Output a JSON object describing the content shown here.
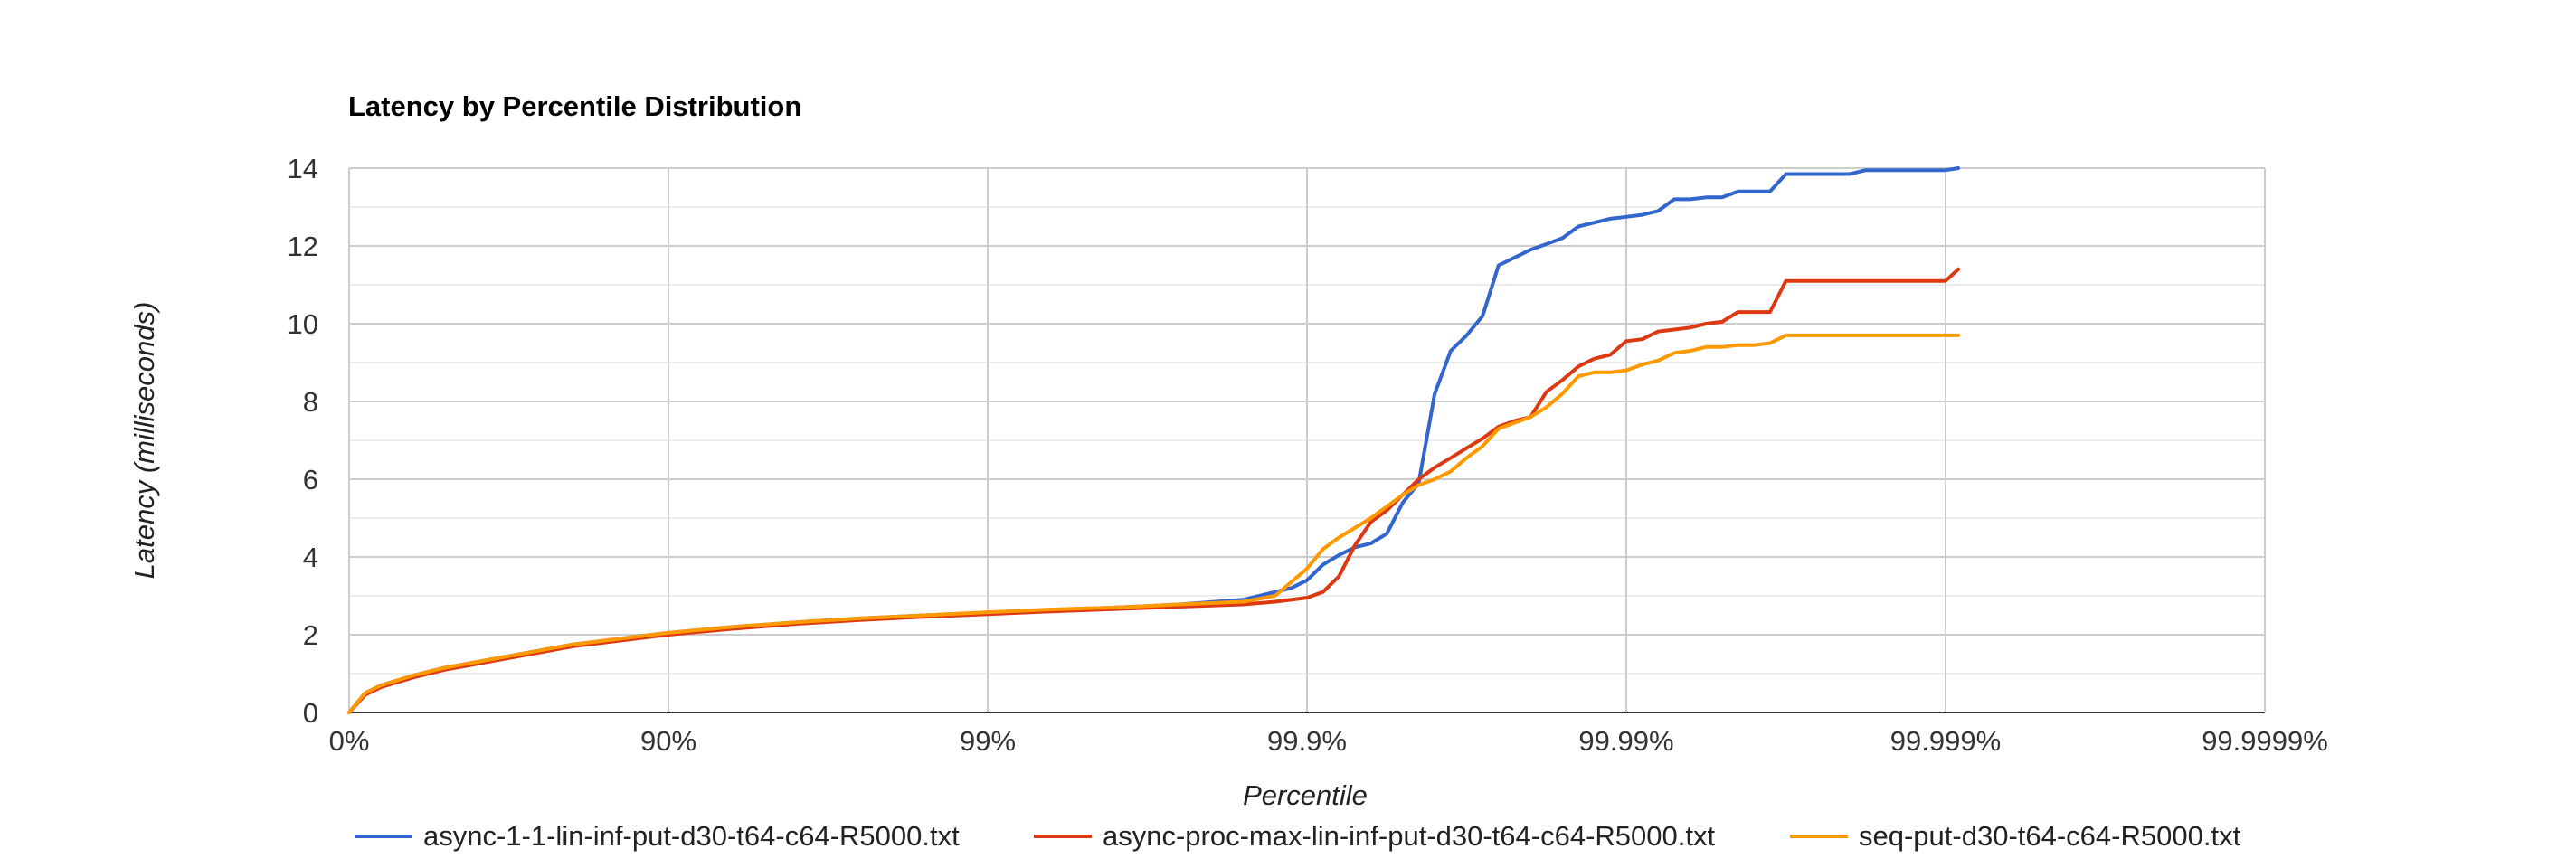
{
  "chart_data": {
    "type": "line",
    "title": "Latency by Percentile Distribution",
    "xlabel": "Percentile",
    "ylabel": "Latency (milliseconds)",
    "x_scale": "nines (log of 1/(1-percentile))",
    "xlim": [
      0,
      6
    ],
    "ylim": [
      0,
      14
    ],
    "x_ticks": [
      "0%",
      "90%",
      "99%",
      "99.9%",
      "99.99%",
      "99.999%",
      "99.9999%"
    ],
    "y_ticks": [
      "0",
      "2",
      "4",
      "6",
      "8",
      "10",
      "12",
      "14"
    ],
    "grid": true,
    "legend_position": "bottom",
    "series": [
      {
        "name": "async-1-1-lin-inf-put-d30-t64-c64-R5000.txt",
        "color": "#3366cc",
        "x": [
          0,
          0.05,
          0.1,
          0.2,
          0.3,
          0.4,
          0.5,
          0.6,
          0.7,
          0.8,
          0.9,
          1.0,
          1.2,
          1.4,
          1.6,
          1.8,
          2.0,
          2.2,
          2.4,
          2.6,
          2.8,
          2.95,
          3.0,
          3.05,
          3.1,
          3.15,
          3.2,
          3.25,
          3.3,
          3.35,
          3.4,
          3.45,
          3.5,
          3.55,
          3.6,
          3.65,
          3.7,
          3.75,
          3.8,
          3.85,
          3.9,
          3.95,
          4.0,
          4.05,
          4.1,
          4.15,
          4.2,
          4.25,
          4.3,
          4.35,
          4.4,
          4.45,
          4.5,
          4.55,
          4.6,
          4.65,
          4.7,
          4.75,
          4.8,
          4.85,
          4.9,
          4.95,
          5.0,
          5.04
        ],
        "values": [
          0.0,
          0.5,
          0.7,
          0.95,
          1.15,
          1.3,
          1.45,
          1.6,
          1.75,
          1.85,
          1.95,
          2.05,
          2.2,
          2.32,
          2.42,
          2.5,
          2.57,
          2.63,
          2.7,
          2.78,
          2.9,
          3.2,
          3.4,
          3.8,
          4.05,
          4.25,
          4.35,
          4.6,
          5.4,
          5.9,
          8.2,
          9.3,
          9.7,
          10.2,
          11.5,
          11.7,
          11.9,
          12.05,
          12.2,
          12.5,
          12.6,
          12.7,
          12.75,
          12.8,
          12.9,
          13.2,
          13.2,
          13.25,
          13.25,
          13.4,
          13.4,
          13.4,
          13.85,
          13.85,
          13.85,
          13.85,
          13.85,
          13.95,
          13.95,
          13.95,
          13.95,
          13.95,
          13.95,
          14.0
        ]
      },
      {
        "name": "async-proc-max-lin-inf-put-d30-t64-c64-R5000.txt",
        "color": "#dc3912",
        "x": [
          0,
          0.05,
          0.1,
          0.2,
          0.3,
          0.4,
          0.5,
          0.6,
          0.7,
          0.8,
          0.9,
          1.0,
          1.2,
          1.4,
          1.6,
          1.8,
          2.0,
          2.2,
          2.4,
          2.6,
          2.8,
          2.9,
          3.0,
          3.05,
          3.1,
          3.15,
          3.2,
          3.25,
          3.3,
          3.35,
          3.4,
          3.45,
          3.5,
          3.55,
          3.6,
          3.65,
          3.7,
          3.75,
          3.8,
          3.85,
          3.9,
          3.95,
          4.0,
          4.05,
          4.1,
          4.15,
          4.2,
          4.25,
          4.3,
          4.35,
          4.4,
          4.45,
          4.5,
          4.55,
          4.6,
          4.65,
          4.7,
          4.75,
          4.8,
          4.85,
          4.9,
          4.95,
          5.0,
          5.04
        ],
        "values": [
          0.0,
          0.45,
          0.65,
          0.9,
          1.1,
          1.25,
          1.4,
          1.55,
          1.7,
          1.8,
          1.9,
          2.0,
          2.15,
          2.28,
          2.38,
          2.46,
          2.53,
          2.6,
          2.66,
          2.72,
          2.78,
          2.85,
          2.95,
          3.1,
          3.5,
          4.3,
          4.9,
          5.2,
          5.6,
          6.0,
          6.3,
          6.55,
          6.8,
          7.05,
          7.35,
          7.5,
          7.6,
          8.25,
          8.55,
          8.9,
          9.1,
          9.2,
          9.55,
          9.6,
          9.8,
          9.85,
          9.9,
          10.0,
          10.05,
          10.3,
          10.3,
          10.3,
          11.1,
          11.1,
          11.1,
          11.1,
          11.1,
          11.1,
          11.1,
          11.1,
          11.1,
          11.1,
          11.1,
          11.4
        ]
      },
      {
        "name": "seq-put-d30-t64-c64-R5000.txt",
        "color": "#ff9900",
        "x": [
          0,
          0.05,
          0.1,
          0.2,
          0.3,
          0.4,
          0.5,
          0.6,
          0.7,
          0.8,
          0.9,
          1.0,
          1.2,
          1.4,
          1.6,
          1.8,
          2.0,
          2.2,
          2.4,
          2.6,
          2.8,
          2.9,
          3.0,
          3.05,
          3.1,
          3.15,
          3.2,
          3.25,
          3.3,
          3.35,
          3.4,
          3.45,
          3.5,
          3.55,
          3.6,
          3.65,
          3.7,
          3.75,
          3.8,
          3.85,
          3.9,
          3.95,
          4.0,
          4.05,
          4.1,
          4.15,
          4.2,
          4.25,
          4.3,
          4.35,
          4.4,
          4.45,
          4.5,
          4.55,
          4.6,
          4.65,
          4.7,
          4.75,
          4.8,
          4.85,
          4.9,
          4.95,
          5.0,
          5.04
        ],
        "values": [
          0.0,
          0.5,
          0.7,
          0.95,
          1.15,
          1.3,
          1.45,
          1.6,
          1.75,
          1.85,
          1.95,
          2.05,
          2.2,
          2.32,
          2.42,
          2.5,
          2.58,
          2.65,
          2.7,
          2.78,
          2.85,
          3.0,
          3.7,
          4.2,
          4.5,
          4.75,
          5.0,
          5.3,
          5.6,
          5.85,
          6.0,
          6.2,
          6.55,
          6.85,
          7.3,
          7.45,
          7.6,
          7.85,
          8.2,
          8.65,
          8.75,
          8.75,
          8.8,
          8.95,
          9.05,
          9.25,
          9.3,
          9.4,
          9.4,
          9.45,
          9.45,
          9.5,
          9.7,
          9.7,
          9.7,
          9.7,
          9.7,
          9.7,
          9.7,
          9.7,
          9.7,
          9.7,
          9.7,
          9.7
        ]
      }
    ]
  }
}
